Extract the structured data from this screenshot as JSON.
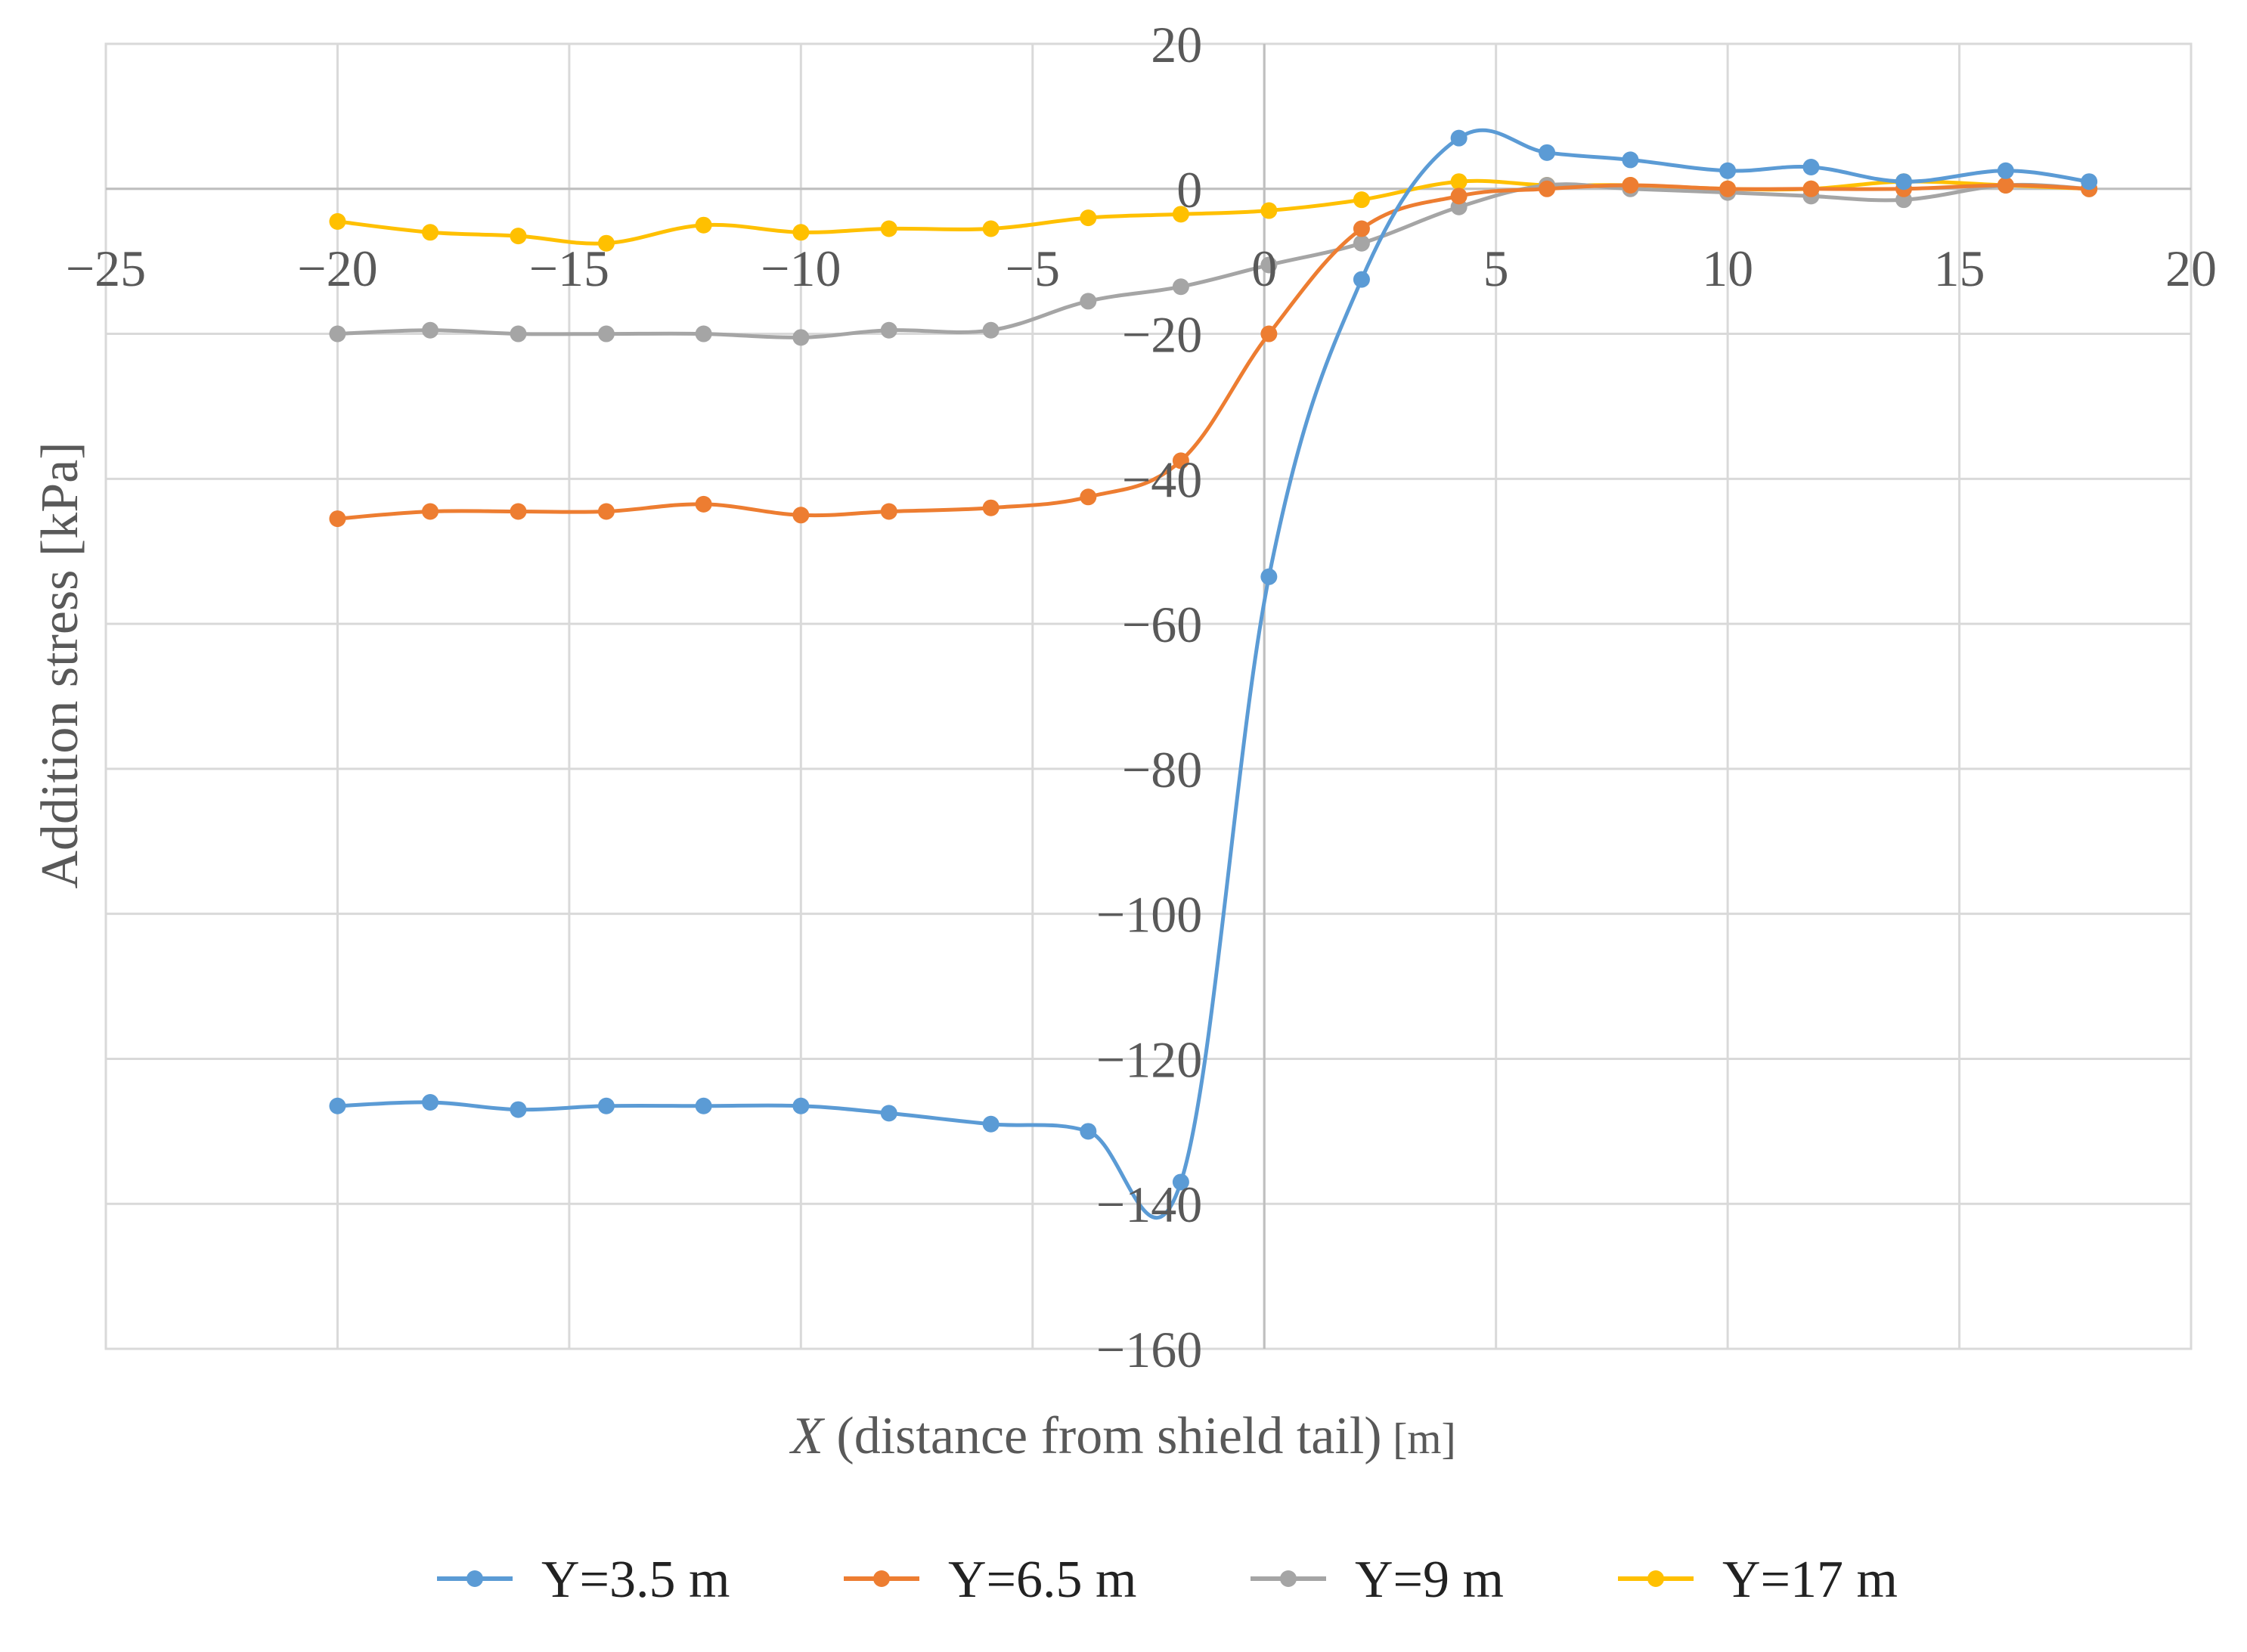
{
  "chart_data": {
    "type": "line",
    "title": "",
    "xlabel_var": "X",
    "xlabel_rest": " (distance from shield tail)",
    "xlabel_unit": " [m]",
    "ylabel": "Addition stress [kPa]",
    "xlim": [
      -25,
      20
    ],
    "ylim": [
      -160,
      20
    ],
    "xticks": [
      -25,
      -20,
      -15,
      -10,
      -5,
      0,
      5,
      10,
      15,
      20
    ],
    "yticks": [
      20,
      0,
      -20,
      -40,
      -60,
      -80,
      -100,
      -120,
      -140,
      -160
    ],
    "xtick_labels": [
      "−25",
      "−20",
      "−15",
      "−10",
      "−5",
      "0",
      "5",
      "10",
      "15",
      "20"
    ],
    "ytick_labels": [
      "20",
      "0",
      "−20",
      "−40",
      "−60",
      "−80",
      "−100",
      "−120",
      "−140",
      "−160"
    ],
    "grid": true,
    "legend_position": "bottom",
    "series": [
      {
        "name": "Y=3.5 m",
        "color": "#5B9BD5",
        "points": [
          [
            -20,
            -126.5
          ],
          [
            -18,
            -126
          ],
          [
            -16.1,
            -127
          ],
          [
            -14.2,
            -126.5
          ],
          [
            -12.1,
            -126.5
          ],
          [
            -10,
            -126.5
          ],
          [
            -8.1,
            -127.5
          ],
          [
            -5.9,
            -129
          ],
          [
            -3.8,
            -130
          ],
          [
            -1.8,
            -137
          ],
          [
            0.1,
            -53.5
          ],
          [
            2.1,
            -12.5
          ],
          [
            4.2,
            7
          ],
          [
            6.1,
            5
          ],
          [
            7.9,
            4
          ],
          [
            10,
            2.5
          ],
          [
            11.8,
            3
          ],
          [
            13.8,
            1
          ],
          [
            16,
            2.5
          ],
          [
            17.8,
            1
          ]
        ]
      },
      {
        "name": "Y=6.5 m",
        "color": "#ED7D31",
        "points": [
          [
            -20,
            -45.5
          ],
          [
            -18,
            -44.5
          ],
          [
            -16.1,
            -44.5
          ],
          [
            -14.2,
            -44.5
          ],
          [
            -12.1,
            -43.5
          ],
          [
            -10,
            -45
          ],
          [
            -8.1,
            -44.5
          ],
          [
            -5.9,
            -44
          ],
          [
            -3.8,
            -42.5
          ],
          [
            -1.8,
            -37.5
          ],
          [
            0.1,
            -20
          ],
          [
            2.1,
            -5.5
          ],
          [
            4.2,
            -1
          ],
          [
            6.1,
            0
          ],
          [
            7.9,
            0.5
          ],
          [
            10,
            0
          ],
          [
            11.8,
            0
          ],
          [
            13.8,
            0
          ],
          [
            16,
            0.5
          ],
          [
            17.8,
            0
          ]
        ]
      },
      {
        "name": "Y=9 m",
        "color": "#A5A5A5",
        "points": [
          [
            -20,
            -20
          ],
          [
            -18,
            -19.5
          ],
          [
            -16.1,
            -20
          ],
          [
            -14.2,
            -20
          ],
          [
            -12.1,
            -20
          ],
          [
            -10,
            -20.5
          ],
          [
            -8.1,
            -19.5
          ],
          [
            -5.9,
            -19.5
          ],
          [
            -3.8,
            -15.5
          ],
          [
            -1.8,
            -13.5
          ],
          [
            0.1,
            -10.5
          ],
          [
            2.1,
            -7.5
          ],
          [
            4.2,
            -2.5
          ],
          [
            6.1,
            0.5
          ],
          [
            7.9,
            0
          ],
          [
            10,
            -0.5
          ],
          [
            11.8,
            -1
          ],
          [
            13.8,
            -1.5
          ],
          [
            16,
            0.5
          ],
          [
            17.8,
            0
          ]
        ]
      },
      {
        "name": "Y=17 m",
        "color": "#FFC000",
        "points": [
          [
            -20,
            -4.5
          ],
          [
            -18,
            -6
          ],
          [
            -16.1,
            -6.5
          ],
          [
            -14.2,
            -7.5
          ],
          [
            -12.1,
            -5
          ],
          [
            -10,
            -6
          ],
          [
            -8.1,
            -5.5
          ],
          [
            -5.9,
            -5.5
          ],
          [
            -3.8,
            -4
          ],
          [
            -1.8,
            -3.5
          ],
          [
            0.1,
            -3
          ],
          [
            2.1,
            -1.5
          ],
          [
            4.2,
            1
          ],
          [
            6.1,
            0.5
          ],
          [
            7.9,
            0.5
          ],
          [
            10,
            0
          ],
          [
            11.8,
            0
          ],
          [
            13.8,
            1
          ],
          [
            16,
            0.5
          ],
          [
            17.8,
            0
          ]
        ]
      }
    ]
  }
}
